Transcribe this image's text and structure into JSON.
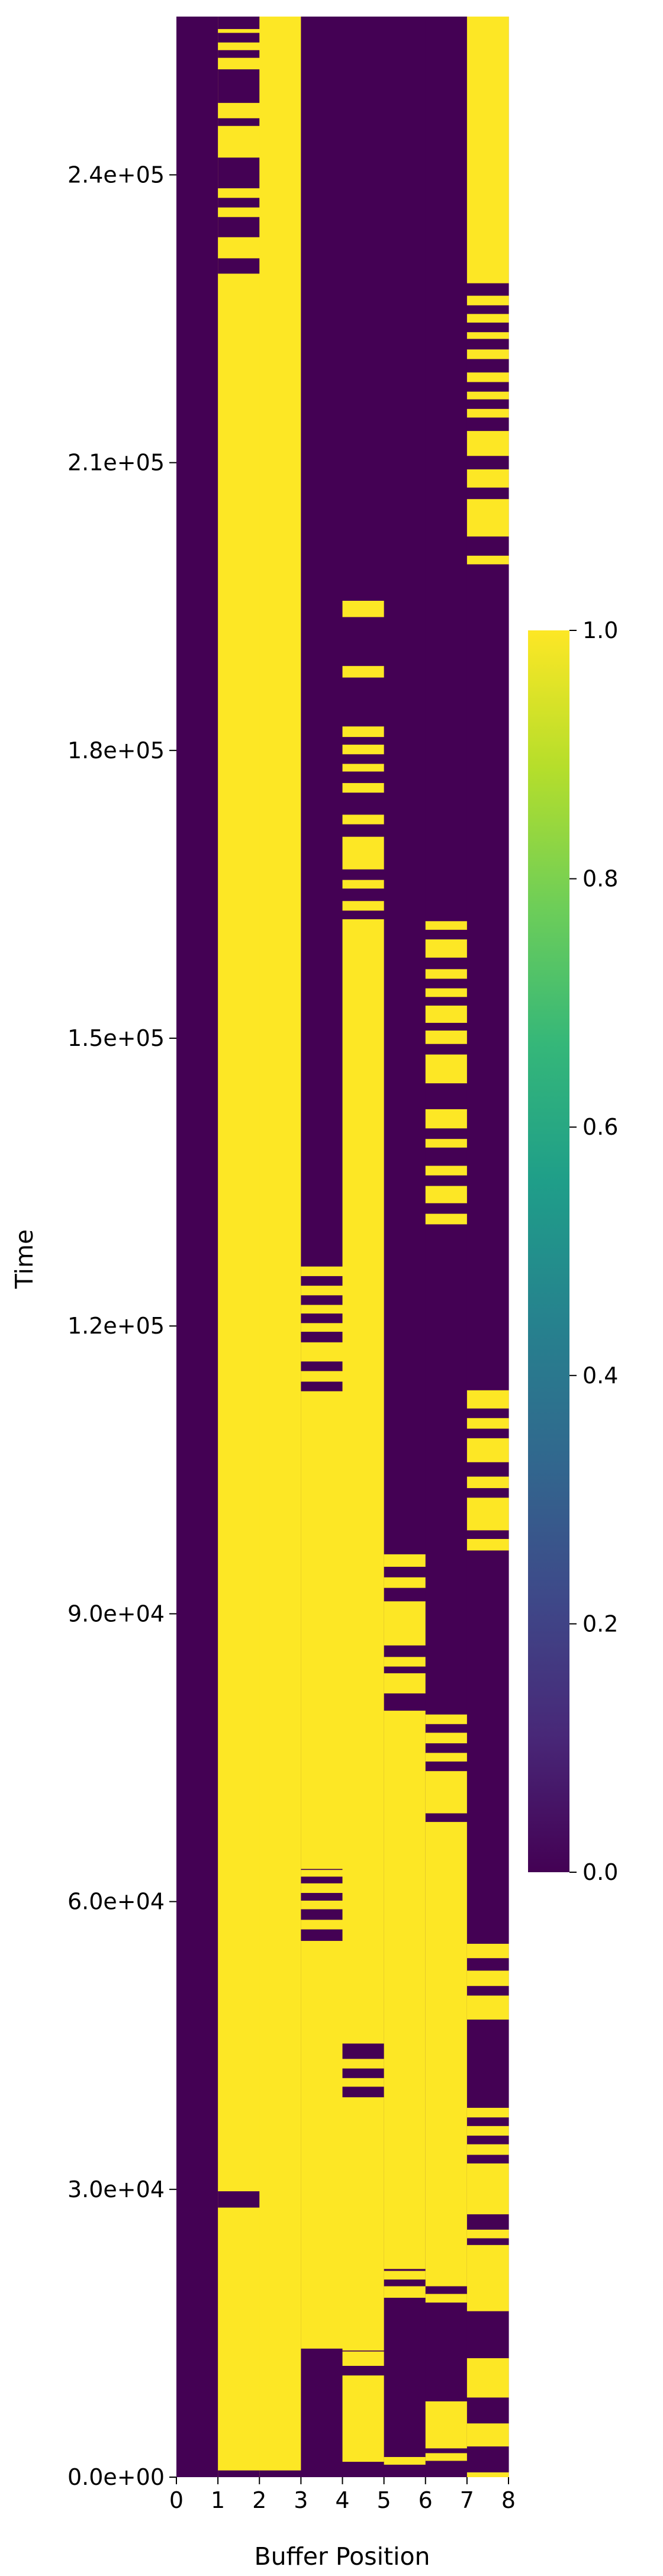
{
  "chart_data": {
    "type": "heatmap",
    "title": "",
    "xlabel": "Buffer Position",
    "ylabel": "Time",
    "x_ticks": [
      "0",
      "1",
      "2",
      "3",
      "4",
      "5",
      "6",
      "7",
      "8"
    ],
    "y_ticks": [
      {
        "value": 0,
        "label": "0.0e+00"
      },
      {
        "value": 30000,
        "label": "3.0e+04"
      },
      {
        "value": 60000,
        "label": "6.0e+04"
      },
      {
        "value": 90000,
        "label": "9.0e+04"
      },
      {
        "value": 120000,
        "label": "1.2e+05"
      },
      {
        "value": 150000,
        "label": "1.5e+05"
      },
      {
        "value": 180000,
        "label": "1.8e+05"
      },
      {
        "value": 210000,
        "label": "2.1e+05"
      },
      {
        "value": 240000,
        "label": "2.4e+05"
      }
    ],
    "ylim": [
      0,
      256500
    ],
    "xlim": [
      0,
      8
    ],
    "colormap": "viridis",
    "colorbar": {
      "min": 0.0,
      "max": 1.0,
      "ticks": [
        "0.0",
        "0.2",
        "0.4",
        "0.6",
        "0.8",
        "1.0"
      ]
    },
    "colors": {
      "low": "#440154",
      "high": "#fde725"
    },
    "grid": false,
    "columns": [
      {
        "position": 0,
        "base": 0,
        "intervals": []
      },
      {
        "position": 1,
        "base": 1,
        "intervals": [
          [
            0,
            700
          ],
          [
            28100,
            29800
          ],
          [
            229700,
            231300
          ],
          [
            233500,
            235600
          ],
          [
            236600,
            237600
          ],
          [
            238600,
            241800
          ],
          [
            245100,
            245900
          ],
          [
            247500,
            251000
          ],
          [
            252200,
            253000
          ],
          [
            253800,
            254800
          ],
          [
            255200,
            256500
          ]
        ]
      },
      {
        "position": 2,
        "base": 1,
        "intervals": [
          [
            0,
            700
          ]
        ]
      },
      {
        "position": 3,
        "base": 0,
        "intervals": [
          [
            13400,
            55900
          ],
          [
            57100,
            58100
          ],
          [
            59200,
            60100
          ],
          [
            60900,
            61900
          ],
          [
            62600,
            63300
          ],
          [
            63400,
            113200
          ],
          [
            114200,
            115300
          ],
          [
            116300,
            118300
          ],
          [
            119400,
            120300
          ],
          [
            121300,
            122200
          ],
          [
            123200,
            124200
          ],
          [
            125200,
            126200
          ]
        ]
      },
      {
        "position": 4,
        "base": 0,
        "intervals": [
          [
            1600,
            10600
          ],
          [
            11600,
            13100
          ],
          [
            13200,
            39600
          ],
          [
            40700,
            41600
          ],
          [
            42600,
            43600
          ],
          [
            45200,
            162400
          ],
          [
            163300,
            164300
          ],
          [
            165600,
            166500
          ],
          [
            167600,
            171000
          ],
          [
            172300,
            173300
          ],
          [
            175600,
            176600
          ],
          [
            177800,
            178600
          ],
          [
            179600,
            180600
          ],
          [
            181400,
            182500
          ],
          [
            187600,
            188800
          ],
          [
            193900,
            195600
          ]
        ]
      },
      {
        "position": 5,
        "base": 0,
        "intervals": [
          [
            1300,
            2100
          ],
          [
            18700,
            19900
          ],
          [
            20600,
            21500
          ],
          [
            21700,
            79900
          ],
          [
            81700,
            83800
          ],
          [
            84500,
            85500
          ],
          [
            86700,
            91300
          ],
          [
            92700,
            93800
          ],
          [
            94900,
            96200
          ]
        ]
      },
      {
        "position": 6,
        "base": 0,
        "intervals": [
          [
            1700,
            2500
          ],
          [
            3000,
            7900
          ],
          [
            18200,
            19100
          ],
          [
            19900,
            68300
          ],
          [
            69200,
            73600
          ],
          [
            74600,
            75500
          ],
          [
            76500,
            77600
          ],
          [
            78500,
            79500
          ],
          [
            130600,
            131700
          ],
          [
            132800,
            134600
          ],
          [
            135700,
            136700
          ],
          [
            138600,
            139500
          ],
          [
            140600,
            142600
          ],
          [
            145300,
            148300
          ],
          [
            149400,
            150800
          ],
          [
            151600,
            153400
          ],
          [
            154300,
            155200
          ],
          [
            156200,
            157200
          ],
          [
            158400,
            160300
          ],
          [
            161300,
            162200
          ]
        ]
      },
      {
        "position": 7,
        "base": 0,
        "intervals": [
          [
            0,
            500
          ],
          [
            3200,
            5600
          ],
          [
            8300,
            12400
          ],
          [
            17300,
            24200
          ],
          [
            24900,
            25800
          ],
          [
            27400,
            32700
          ],
          [
            33600,
            34700
          ],
          [
            35600,
            36600
          ],
          [
            37500,
            38500
          ],
          [
            47700,
            50200
          ],
          [
            51200,
            52800
          ],
          [
            54100,
            55600
          ],
          [
            96600,
            97800
          ],
          [
            98700,
            102100
          ],
          [
            103100,
            104300
          ],
          [
            105800,
            108300
          ],
          [
            109300,
            110400
          ],
          [
            111400,
            113300
          ],
          [
            199400,
            200300
          ],
          [
            202300,
            206200
          ],
          [
            207400,
            209300
          ],
          [
            210700,
            213300
          ],
          [
            214700,
            215600
          ],
          [
            216600,
            217400
          ],
          [
            218400,
            219400
          ],
          [
            220800,
            221800
          ],
          [
            222900,
            223600
          ],
          [
            224600,
            225500
          ],
          [
            226400,
            227400
          ],
          [
            228700,
            256500
          ]
        ]
      }
    ]
  }
}
